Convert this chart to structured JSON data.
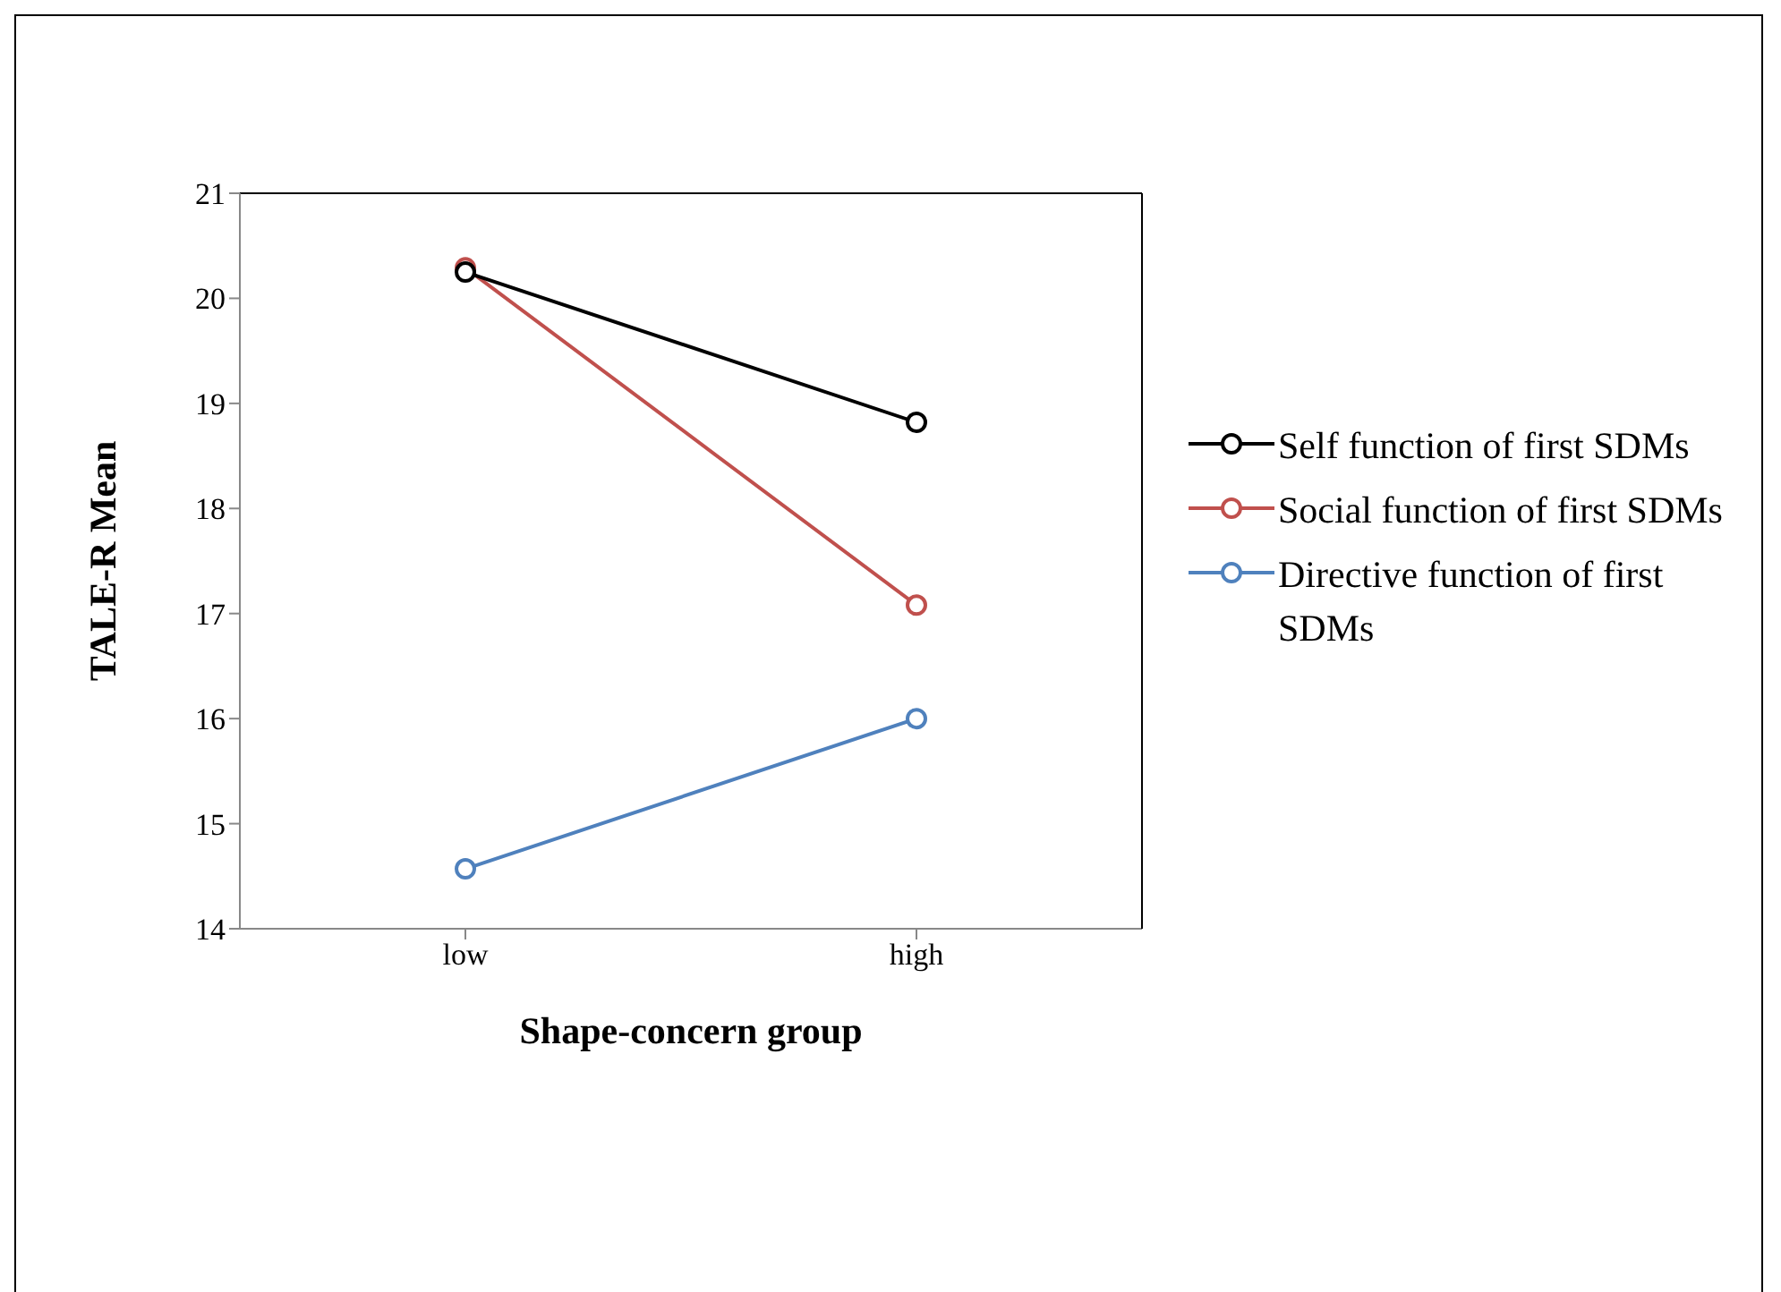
{
  "chart_data": {
    "type": "line",
    "xlabel": "Shape-concern group",
    "ylabel": "TALE-R Mean",
    "categories": [
      "low",
      "high"
    ],
    "series": [
      {
        "name": "Self function of first SDMs",
        "color": "#000000",
        "values": [
          20.25,
          18.82
        ]
      },
      {
        "name": "Social function of first SDMs",
        "color": "#c0504d",
        "values": [
          20.29,
          17.08
        ]
      },
      {
        "name": "Directive function of first SDMs",
        "color": "#4f81bd",
        "values": [
          14.57,
          16.0
        ]
      }
    ],
    "ylim": [
      14,
      21
    ],
    "yticks": [
      14,
      15,
      16,
      17,
      18,
      19,
      20,
      21
    ],
    "grid": false,
    "legend": "right",
    "marker": "circle",
    "line_style": "solid"
  }
}
